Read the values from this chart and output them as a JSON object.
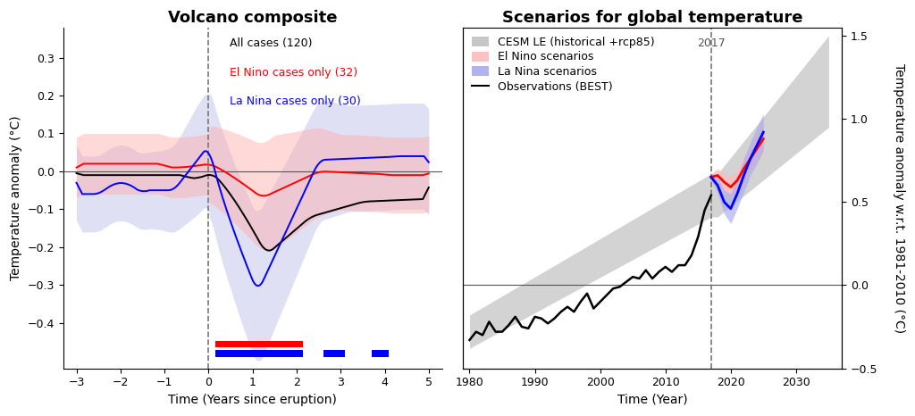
{
  "left_title": "Volcano composite",
  "right_title": "Scenarios for global temperature",
  "left_xlabel": "Time (Years since eruption)",
  "left_ylabel": "Temperature anomaly (°C)",
  "right_xlabel": "Time (Year)",
  "right_ylabel": "Temperature anomaly w.r.t. 1981-2010 (°C)",
  "left_xlim": [
    -3.3,
    5.3
  ],
  "left_ylim": [
    -0.52,
    0.38
  ],
  "right_xlim": [
    1979,
    2037
  ],
  "right_ylim": [
    -0.5,
    1.55
  ],
  "legend_left": [
    {
      "label": "All cases (120)",
      "color": "black"
    },
    {
      "label": "El Nino cases only (32)",
      "color": "red"
    },
    {
      "label": "La Nina cases only (30)",
      "color": "blue"
    }
  ],
  "legend_right": [
    {
      "label": "CESM LE (historical +rcp85)",
      "color": "#b0b0b0"
    },
    {
      "label": "El Nino scenarios",
      "color": "#ffbbbb"
    },
    {
      "label": "La Nina scenarios",
      "color": "#aaaaee"
    },
    {
      "label": "Observations (BEST)",
      "color": "black"
    }
  ],
  "background_color": "#ffffff",
  "title_fontsize": 13,
  "label_fontsize": 10,
  "tick_fontsize": 9,
  "legend_fontsize": 9
}
